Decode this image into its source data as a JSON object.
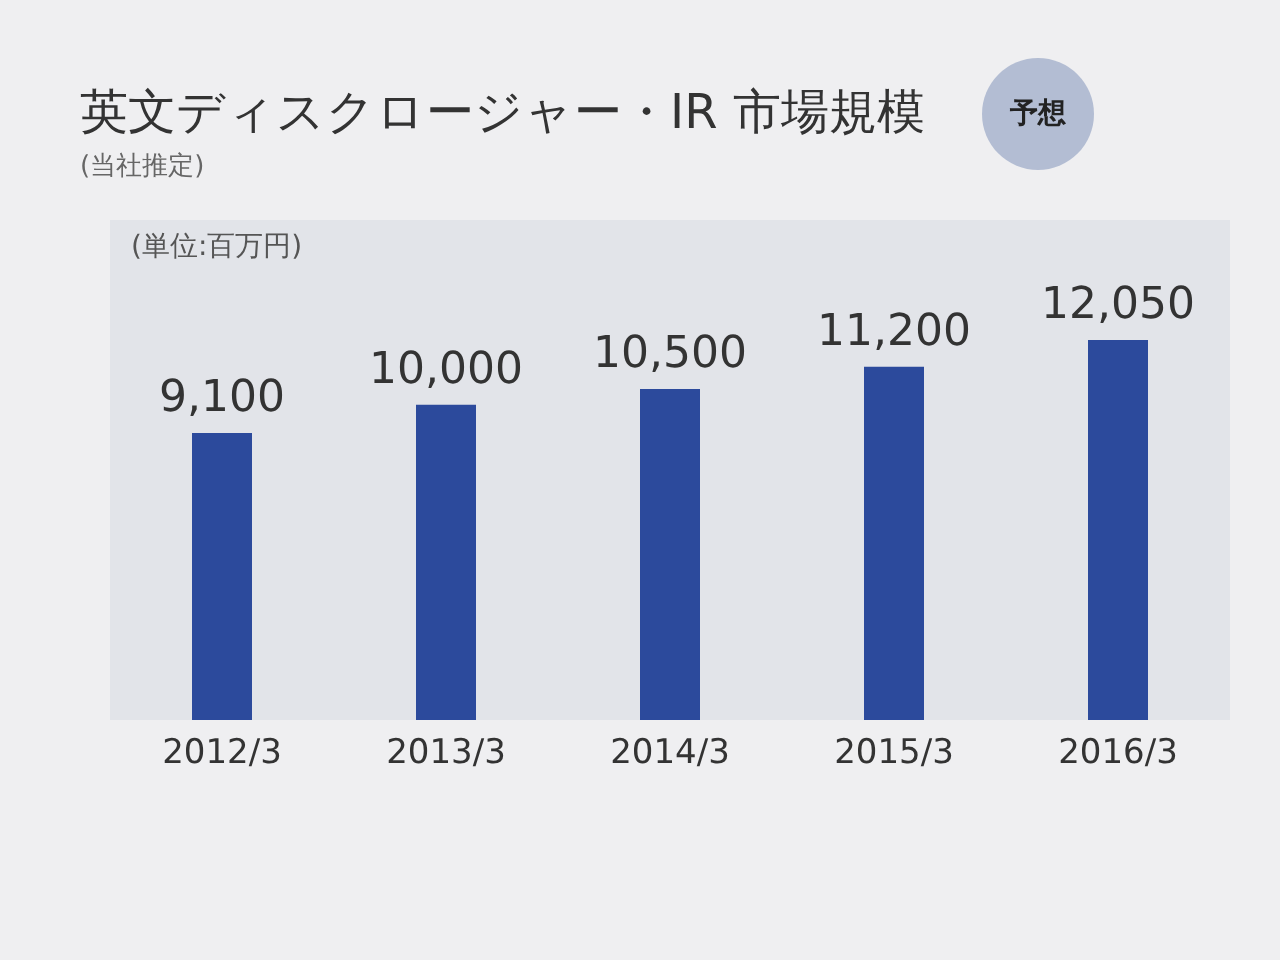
{
  "chart_data": {
    "type": "bar",
    "title": "英文ディスクロージャー・IR 市場規模",
    "subtitle": "(当社推定)",
    "ylabel": "(単位:百万円)",
    "categories": [
      "2012/3",
      "2013/3",
      "2014/3",
      "2015/3",
      "2016/3"
    ],
    "values": [
      9100,
      10000,
      10500,
      11200,
      12050
    ],
    "color": "#2c4a9c",
    "value_labels": [
      "9,100",
      "10,000",
      "10,500",
      "11,200",
      "12,050"
    ],
    "annotations": [
      "予想"
    ]
  }
}
